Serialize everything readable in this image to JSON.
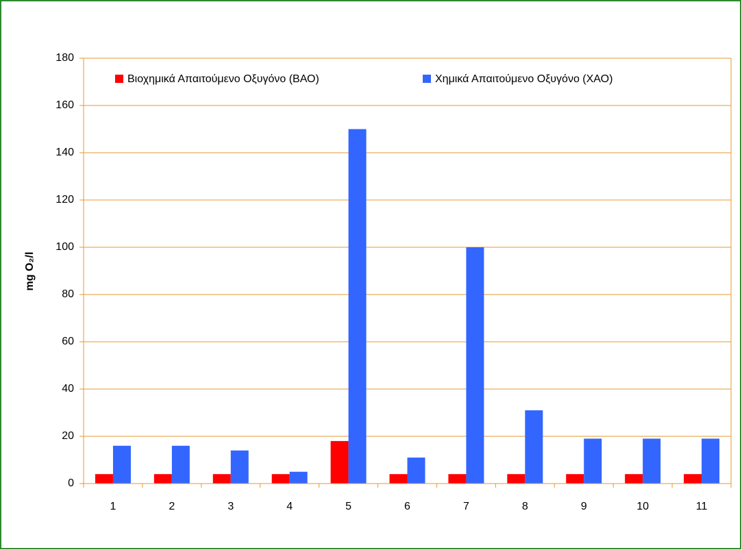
{
  "chart_data": {
    "type": "bar",
    "ylabel": "mg O₂/l",
    "categories": [
      "1",
      "2",
      "3",
      "4",
      "5",
      "6",
      "7",
      "8",
      "9",
      "10",
      "11"
    ],
    "series": [
      {
        "name": "Βιοχημικά Απαιτούμενο Οξυγόνο (ΒΑΟ)",
        "color": "#ff0000",
        "values": [
          4,
          4,
          4,
          4,
          18,
          4,
          4,
          4,
          4,
          4,
          4
        ]
      },
      {
        "name": "Χημικά Απαιτούμενο Οξυγόνο (ΧΑΟ)",
        "color": "#3366ff",
        "values": [
          16,
          16,
          14,
          5,
          150,
          11,
          100,
          31,
          19,
          19,
          19
        ]
      }
    ],
    "ylim": [
      0,
      180
    ],
    "yticks": [
      0,
      20,
      40,
      60,
      80,
      100,
      120,
      140,
      160,
      180
    ],
    "grid": true,
    "legend": "top"
  }
}
